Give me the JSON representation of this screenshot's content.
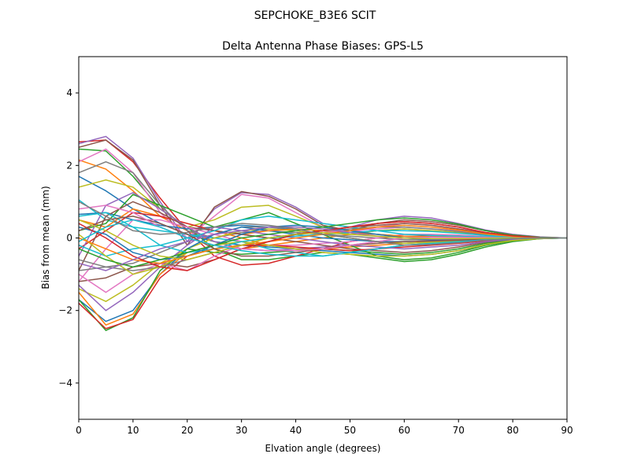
{
  "figure": {
    "suptitle": "SEPCHOKE_B3E6   SCIT"
  },
  "chart_data": {
    "type": "line",
    "title": "Delta Antenna Phase Biases: GPS-L5",
    "xlabel": "Elvation angle (degrees)",
    "ylabel": "Bias from mean (mm)",
    "xlim": [
      0,
      90
    ],
    "ylim": [
      -5,
      5
    ],
    "xticks": [
      0,
      10,
      20,
      30,
      40,
      50,
      60,
      70,
      80,
      90
    ],
    "yticks": [
      -4,
      -2,
      0,
      2,
      4
    ],
    "grid": false,
    "legend": "none",
    "x": [
      0,
      5,
      10,
      15,
      20,
      25,
      30,
      35,
      40,
      45,
      50,
      55,
      60,
      65,
      70,
      75,
      80,
      85,
      90
    ],
    "series": [
      {
        "color": "#1f77b4",
        "values": [
          1.7,
          1.3,
          0.8,
          0.4,
          0.1,
          -0.1,
          -0.2,
          -0.25,
          -0.3,
          -0.35,
          -0.4,
          -0.45,
          -0.5,
          -0.45,
          -0.35,
          -0.2,
          -0.08,
          -0.02,
          0
        ]
      },
      {
        "color": "#ff7f0e",
        "values": [
          2.15,
          1.9,
          1.3,
          0.6,
          0.2,
          -0.1,
          -0.3,
          -0.2,
          -0.1,
          0.0,
          0.1,
          0.2,
          0.25,
          0.2,
          0.15,
          0.08,
          0.03,
          0.01,
          0
        ]
      },
      {
        "color": "#2ca02c",
        "values": [
          2.45,
          2.4,
          1.7,
          0.8,
          0.3,
          -0.3,
          -0.6,
          -0.6,
          -0.5,
          -0.4,
          -0.45,
          -0.55,
          -0.65,
          -0.6,
          -0.45,
          -0.25,
          -0.1,
          -0.02,
          0
        ]
      },
      {
        "color": "#d62728",
        "values": [
          2.65,
          2.7,
          2.1,
          1.1,
          0.2,
          -0.5,
          -0.75,
          -0.7,
          -0.5,
          -0.3,
          -0.1,
          0.0,
          0.05,
          0.05,
          0.04,
          0.02,
          0.01,
          0.0,
          0
        ]
      },
      {
        "color": "#9467bd",
        "values": [
          2.6,
          2.8,
          2.2,
          1.0,
          -0.1,
          0.8,
          1.25,
          1.2,
          0.85,
          0.4,
          0.3,
          0.5,
          0.6,
          0.55,
          0.4,
          0.22,
          0.1,
          0.03,
          0
        ]
      },
      {
        "color": "#8c564b",
        "values": [
          2.5,
          2.7,
          2.15,
          0.9,
          -0.2,
          0.85,
          1.28,
          1.15,
          0.8,
          0.35,
          0.2,
          0.4,
          0.5,
          0.45,
          0.35,
          0.2,
          0.08,
          0.02,
          0
        ]
      },
      {
        "color": "#e377c2",
        "values": [
          2.1,
          2.45,
          1.8,
          0.7,
          0.0,
          0.6,
          1.2,
          1.1,
          0.7,
          0.3,
          0.15,
          0.3,
          0.4,
          0.35,
          0.25,
          0.15,
          0.06,
          0.02,
          0
        ]
      },
      {
        "color": "#7f7f7f",
        "values": [
          1.8,
          2.1,
          1.8,
          0.9,
          0.2,
          0.0,
          0.15,
          0.2,
          0.15,
          0.1,
          0.05,
          0.0,
          -0.05,
          -0.05,
          -0.04,
          -0.02,
          -0.01,
          0.0,
          0
        ]
      },
      {
        "color": "#bcbd22",
        "values": [
          1.4,
          1.6,
          1.4,
          0.8,
          0.3,
          0.5,
          0.85,
          0.9,
          0.6,
          0.3,
          0.1,
          0.2,
          0.25,
          0.2,
          0.15,
          0.08,
          0.03,
          0.01,
          0
        ]
      },
      {
        "color": "#17becf",
        "values": [
          1.05,
          0.5,
          0.3,
          0.2,
          0.1,
          0.0,
          -0.1,
          -0.3,
          -0.4,
          -0.5,
          -0.4,
          -0.3,
          -0.2,
          -0.15,
          -0.1,
          -0.05,
          -0.02,
          0.0,
          0
        ]
      },
      {
        "color": "#1f77b4",
        "values": [
          0.65,
          0.7,
          0.5,
          0.35,
          0.25,
          0.3,
          0.35,
          0.3,
          0.25,
          0.2,
          0.15,
          0.1,
          0.05,
          0.03,
          0.02,
          0.01,
          0.0,
          0.0,
          0
        ]
      },
      {
        "color": "#ff7f0e",
        "values": [
          0.5,
          0.3,
          0.8,
          0.6,
          0.4,
          0.2,
          0.0,
          -0.2,
          -0.3,
          -0.3,
          -0.25,
          -0.2,
          -0.15,
          -0.1,
          -0.07,
          -0.04,
          -0.02,
          0.0,
          0
        ]
      },
      {
        "color": "#2ca02c",
        "values": [
          0.2,
          0.4,
          1.2,
          0.9,
          0.6,
          0.3,
          0.5,
          0.7,
          0.4,
          0.1,
          -0.2,
          -0.5,
          -0.6,
          -0.55,
          -0.4,
          -0.2,
          -0.08,
          -0.02,
          0
        ]
      },
      {
        "color": "#d62728",
        "values": [
          -0.3,
          0.2,
          0.7,
          0.6,
          0.4,
          0.2,
          0.1,
          0.0,
          0.1,
          0.2,
          0.3,
          0.4,
          0.45,
          0.4,
          0.3,
          0.15,
          0.06,
          0.02,
          0
        ]
      },
      {
        "color": "#9467bd",
        "values": [
          -0.5,
          0.9,
          1.25,
          0.8,
          0.3,
          -0.1,
          -0.3,
          -0.35,
          -0.3,
          -0.25,
          -0.2,
          -0.1,
          0.0,
          0.05,
          0.04,
          0.02,
          0.01,
          0.0,
          0
        ]
      },
      {
        "color": "#8c564b",
        "values": [
          -0.9,
          0.6,
          1.0,
          0.7,
          0.3,
          0.2,
          0.1,
          0.0,
          -0.1,
          -0.2,
          -0.3,
          -0.35,
          -0.4,
          -0.35,
          -0.25,
          -0.12,
          -0.05,
          -0.01,
          0
        ]
      },
      {
        "color": "#e377c2",
        "values": [
          -1.2,
          -0.3,
          0.5,
          0.5,
          0.3,
          0.1,
          -0.1,
          -0.2,
          -0.2,
          -0.15,
          -0.1,
          0.0,
          0.1,
          0.1,
          0.08,
          0.04,
          0.02,
          0.0,
          0
        ]
      },
      {
        "color": "#7f7f7f",
        "values": [
          -0.6,
          -0.8,
          -0.7,
          -0.4,
          -0.1,
          0.1,
          0.3,
          0.3,
          0.2,
          0.1,
          0.0,
          -0.1,
          -0.15,
          -0.12,
          -0.08,
          -0.04,
          -0.02,
          0.0,
          0
        ]
      },
      {
        "color": "#bcbd22",
        "values": [
          -1.4,
          -1.75,
          -1.3,
          -0.7,
          -0.3,
          0.0,
          0.2,
          0.25,
          0.2,
          0.1,
          0.0,
          -0.1,
          -0.15,
          -0.12,
          -0.09,
          -0.05,
          -0.02,
          0.0,
          0
        ]
      },
      {
        "color": "#17becf",
        "values": [
          -0.2,
          -0.5,
          -0.3,
          -0.2,
          0.0,
          0.2,
          0.5,
          0.6,
          0.5,
          0.4,
          0.3,
          0.2,
          0.1,
          0.07,
          0.05,
          0.03,
          0.01,
          0.0,
          0
        ]
      },
      {
        "color": "#1f77b4",
        "values": [
          -1.7,
          -2.3,
          -2.0,
          -1.0,
          -0.3,
          0.1,
          0.3,
          0.2,
          0.1,
          0.0,
          -0.05,
          -0.1,
          -0.1,
          -0.08,
          -0.05,
          -0.03,
          -0.01,
          0.0,
          0
        ]
      },
      {
        "color": "#ff7f0e",
        "values": [
          -1.5,
          -2.4,
          -2.1,
          -1.0,
          -0.4,
          -0.2,
          0.1,
          0.2,
          0.25,
          0.2,
          0.15,
          0.1,
          0.05,
          0.03,
          0.02,
          0.01,
          0.0,
          0.0,
          0
        ]
      },
      {
        "color": "#2ca02c",
        "values": [
          -1.7,
          -2.55,
          -2.2,
          -0.9,
          -0.3,
          -0.4,
          -0.45,
          -0.4,
          -0.35,
          -0.3,
          -0.35,
          -0.4,
          -0.45,
          -0.4,
          -0.3,
          -0.15,
          -0.06,
          -0.01,
          0
        ]
      },
      {
        "color": "#d62728",
        "values": [
          -1.8,
          -2.5,
          -2.25,
          -1.1,
          -0.5,
          -0.3,
          -0.2,
          -0.2,
          -0.25,
          -0.3,
          -0.35,
          -0.3,
          -0.25,
          -0.2,
          -0.15,
          -0.08,
          -0.03,
          -0.01,
          0
        ]
      },
      {
        "color": "#9467bd",
        "values": [
          -1.3,
          -2.0,
          -1.5,
          -0.8,
          -0.2,
          0.3,
          0.2,
          0.1,
          0.0,
          -0.1,
          -0.2,
          -0.25,
          -0.3,
          -0.25,
          -0.2,
          -0.1,
          -0.04,
          -0.01,
          0
        ]
      },
      {
        "color": "#8c564b",
        "values": [
          -1.2,
          -1.1,
          -0.8,
          -0.7,
          -0.8,
          -0.6,
          -0.3,
          -0.1,
          0.1,
          0.2,
          0.3,
          0.35,
          0.4,
          0.35,
          0.25,
          0.12,
          0.05,
          0.01,
          0
        ]
      },
      {
        "color": "#e377c2",
        "values": [
          -1.0,
          -1.5,
          -1.0,
          -0.7,
          -0.9,
          -0.5,
          -0.2,
          0.0,
          0.1,
          0.15,
          0.2,
          0.25,
          0.3,
          0.25,
          0.2,
          0.1,
          0.04,
          0.01,
          0
        ]
      },
      {
        "color": "#7f7f7f",
        "values": [
          -0.9,
          -0.8,
          -0.9,
          -0.8,
          -0.6,
          -0.4,
          -0.2,
          0.0,
          0.1,
          0.2,
          0.25,
          0.3,
          0.3,
          0.25,
          0.18,
          0.09,
          0.04,
          0.01,
          0
        ]
      },
      {
        "color": "#bcbd22",
        "values": [
          0.1,
          -0.5,
          -1.0,
          -0.8,
          -0.4,
          -0.2,
          -0.1,
          -0.2,
          -0.3,
          -0.4,
          -0.45,
          -0.5,
          -0.5,
          -0.45,
          -0.35,
          -0.18,
          -0.07,
          -0.02,
          0
        ]
      },
      {
        "color": "#17becf",
        "values": [
          0.6,
          0.7,
          0.3,
          -0.2,
          -0.4,
          -0.3,
          -0.1,
          0.0,
          0.05,
          0.1,
          0.15,
          0.2,
          0.2,
          0.18,
          0.13,
          0.07,
          0.03,
          0.01,
          0
        ]
      },
      {
        "color": "#1f77b4",
        "values": [
          0.3,
          0.1,
          -0.4,
          -0.6,
          -0.5,
          -0.2,
          0.1,
          0.3,
          0.35,
          0.3,
          0.2,
          0.1,
          0.0,
          -0.05,
          -0.04,
          -0.02,
          -0.01,
          0.0,
          0
        ]
      },
      {
        "color": "#ff7f0e",
        "values": [
          0.0,
          -0.3,
          -0.6,
          -0.7,
          -0.5,
          -0.3,
          -0.2,
          -0.1,
          0.0,
          0.1,
          0.2,
          0.3,
          0.35,
          0.3,
          0.22,
          0.11,
          0.04,
          0.01,
          0
        ]
      },
      {
        "color": "#2ca02c",
        "values": [
          -0.3,
          -0.6,
          -0.8,
          -0.6,
          -0.4,
          -0.2,
          0.0,
          0.1,
          0.2,
          0.3,
          0.4,
          0.5,
          0.55,
          0.5,
          0.38,
          0.2,
          0.08,
          0.02,
          0
        ]
      },
      {
        "color": "#d62728",
        "values": [
          0.4,
          0.0,
          -0.5,
          -0.8,
          -0.9,
          -0.6,
          -0.3,
          -0.1,
          0.1,
          0.2,
          0.3,
          0.4,
          0.45,
          0.4,
          0.3,
          0.15,
          0.06,
          0.01,
          0
        ]
      },
      {
        "color": "#9467bd",
        "values": [
          -0.7,
          -0.9,
          -0.6,
          -0.3,
          -0.1,
          0.1,
          0.2,
          0.3,
          0.3,
          0.25,
          0.15,
          0.05,
          0.0,
          -0.03,
          -0.03,
          -0.02,
          -0.01,
          0.0,
          0
        ]
      },
      {
        "color": "#8c564b",
        "values": [
          0.2,
          0.5,
          0.6,
          0.4,
          0.1,
          -0.3,
          -0.5,
          -0.5,
          -0.4,
          -0.3,
          -0.2,
          -0.15,
          -0.1,
          -0.08,
          -0.06,
          -0.03,
          -0.01,
          0.0,
          0
        ]
      },
      {
        "color": "#e377c2",
        "values": [
          0.8,
          0.9,
          0.7,
          0.3,
          0.0,
          -0.2,
          -0.3,
          -0.35,
          -0.35,
          -0.3,
          -0.2,
          -0.1,
          0.0,
          0.02,
          0.02,
          0.01,
          0.0,
          0.0,
          0
        ]
      },
      {
        "color": "#bcbd22",
        "values": [
          0.5,
          0.2,
          -0.2,
          -0.5,
          -0.6,
          -0.4,
          -0.2,
          0.0,
          0.1,
          0.15,
          0.1,
          0.05,
          0.0,
          -0.02,
          -0.02,
          -0.01,
          0.0,
          0.0,
          0
        ]
      },
      {
        "color": "#17becf",
        "values": [
          -0.1,
          0.3,
          0.5,
          0.3,
          0.0,
          -0.2,
          -0.35,
          -0.45,
          -0.5,
          -0.5,
          -0.4,
          -0.3,
          -0.2,
          -0.15,
          -0.1,
          -0.05,
          -0.02,
          0.0,
          0
        ]
      },
      {
        "color": "#7f7f7f",
        "values": [
          1.0,
          0.6,
          0.2,
          0.1,
          0.15,
          0.3,
          0.4,
          0.35,
          0.25,
          0.1,
          0.0,
          -0.1,
          -0.2,
          -0.18,
          -0.13,
          -0.06,
          -0.02,
          0.0,
          0
        ]
      }
    ]
  }
}
